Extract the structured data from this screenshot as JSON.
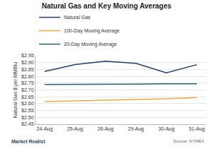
{
  "chart_data": {
    "type": "line",
    "title": "Natural Gas and Key Moving Averages",
    "y_label": "Natural Gas $ per MMBtu",
    "categories": [
      "24-Aug",
      "25-Aug",
      "26-Aug",
      "29-Aug",
      "30-Aug",
      "31-Aug"
    ],
    "series": [
      {
        "name": "Natural Gas",
        "color": "#1f3d6e",
        "values": [
          2.835,
          2.885,
          2.91,
          2.895,
          2.825,
          2.885
        ]
      },
      {
        "name": "100-Day Moving Average",
        "color": "#f2a93b",
        "values": [
          2.615,
          2.62,
          2.625,
          2.63,
          2.635,
          2.645
        ]
      },
      {
        "name": "20-Day Moving Average",
        "color": "#2b5f6e",
        "values": [
          2.74,
          2.74,
          2.74,
          2.743,
          2.745,
          2.745
        ]
      }
    ],
    "ylim": [
      2.45,
      2.95
    ],
    "yticks": [
      {
        "value": 2.45,
        "label": "$2.45"
      },
      {
        "value": 2.5,
        "label": "$2.50"
      },
      {
        "value": 2.55,
        "label": "$2.55"
      },
      {
        "value": 2.6,
        "label": "$2.60"
      },
      {
        "value": 2.65,
        "label": "$2.65"
      },
      {
        "value": 2.7,
        "label": "$2.70"
      },
      {
        "value": 2.75,
        "label": "$2.75"
      },
      {
        "value": 2.8,
        "label": "$2.80"
      },
      {
        "value": 2.85,
        "label": "$2.85"
      },
      {
        "value": 2.9,
        "label": "$2.90"
      },
      {
        "value": 2.95,
        "label": "$2.95"
      }
    ],
    "grid": true,
    "legend": "top-left",
    "annotations": [
      {
        "text": "Market Realist"
      },
      {
        "text": "Source: NYMEX"
      }
    ]
  }
}
